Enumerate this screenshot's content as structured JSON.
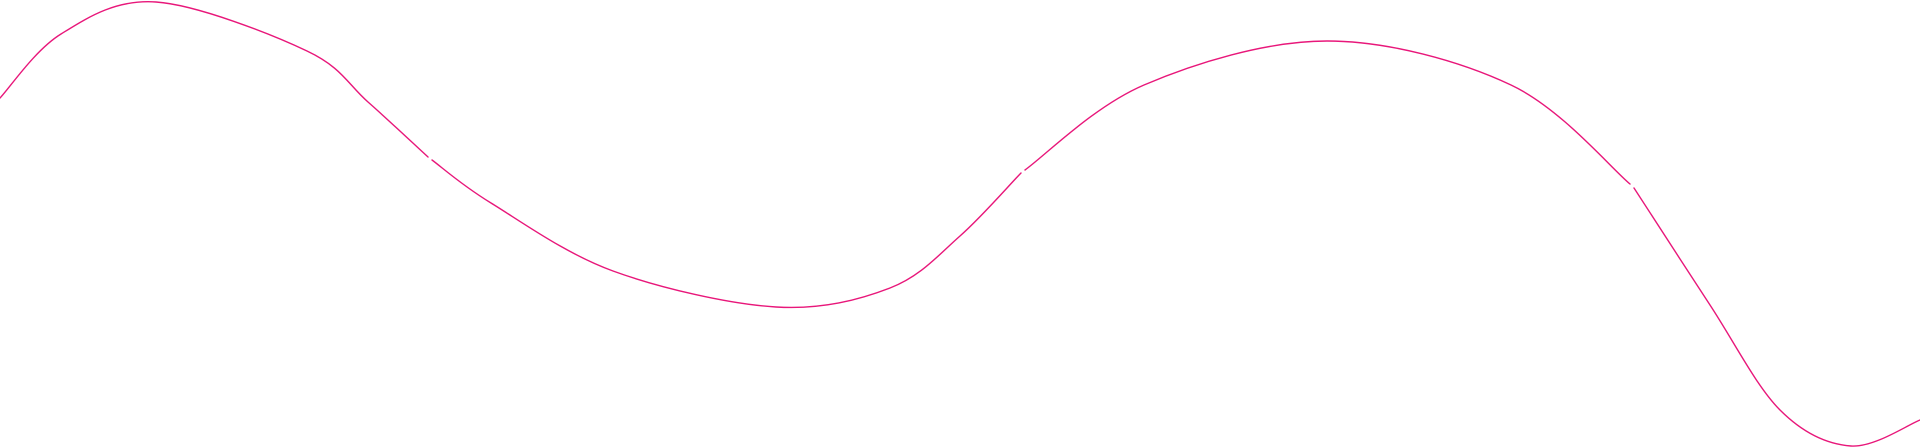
{
  "decoration": {
    "stroke_color": "#e8177a"
  }
}
